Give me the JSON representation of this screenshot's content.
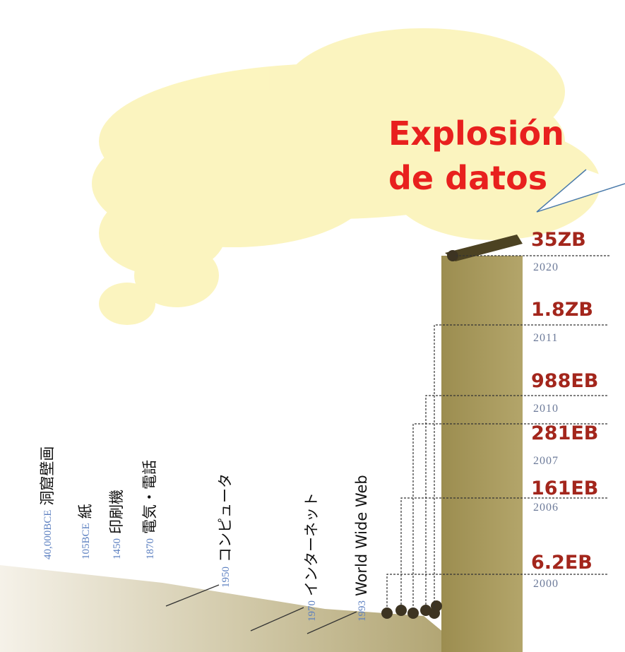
{
  "callout": {
    "lines": [
      "Explosión",
      "de datos"
    ]
  },
  "milestones": [
    {
      "year": "40,000BCE",
      "label": "洞窟壁画"
    },
    {
      "year": "105BCE",
      "label": "紙"
    },
    {
      "year": "1450",
      "label": "印刷機"
    },
    {
      "year": "1870",
      "label": "電気・電話"
    },
    {
      "year": "1950",
      "label": "コンピュータ"
    },
    {
      "year": "1970",
      "label": "インターネット"
    },
    {
      "year": "1993",
      "label": "World Wide Web"
    }
  ],
  "data_points": [
    {
      "amount": "35ZB",
      "year": "2020"
    },
    {
      "amount": "1.8ZB",
      "year": "2011"
    },
    {
      "amount": "988EB",
      "year": "2010"
    },
    {
      "amount": "281EB",
      "year": "2007"
    },
    {
      "amount": "161EB",
      "year": "2006"
    },
    {
      "amount": "6.2EB",
      "year": "2000"
    }
  ]
}
